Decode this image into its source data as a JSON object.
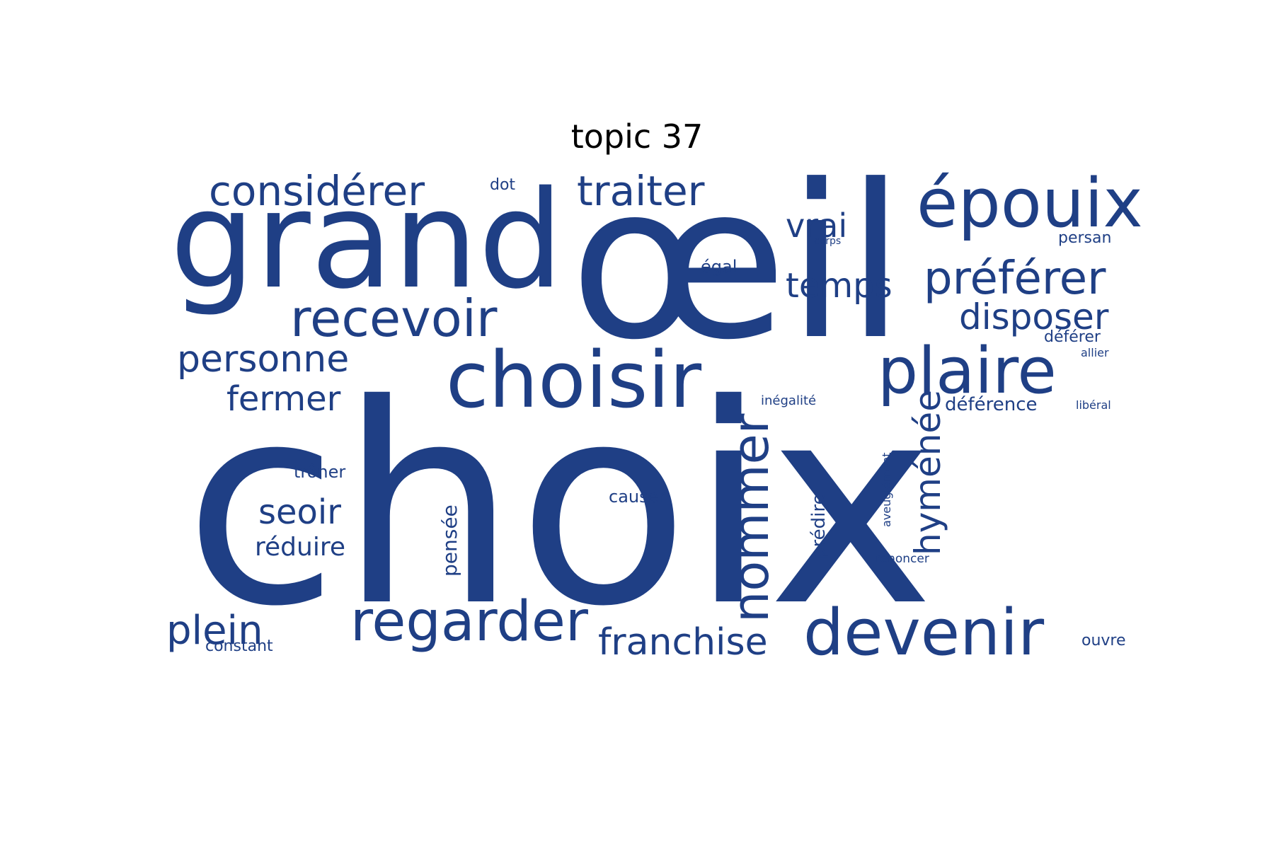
{
  "title": "topic 37",
  "color": "#1f3f85",
  "words": [
    "choix",
    "œil",
    "grand",
    "choisir",
    "épouix",
    "plaire",
    "devenir",
    "regarder",
    "recevoir",
    "nommer",
    "préférer",
    "considérer",
    "traiter",
    "personne",
    "disposer",
    "franchise",
    "hyménée",
    "temps",
    "plein",
    "fermer",
    "seoir",
    "vrai",
    "réduire",
    "pensée",
    "prédire",
    "égal",
    "déférence",
    "causer",
    "trôner",
    "inégalité",
    "persan",
    "déférer",
    "dot",
    "corps",
    "aveuglément",
    "constant",
    "ouvre",
    "renoncer",
    "allier",
    "libéral"
  ]
}
